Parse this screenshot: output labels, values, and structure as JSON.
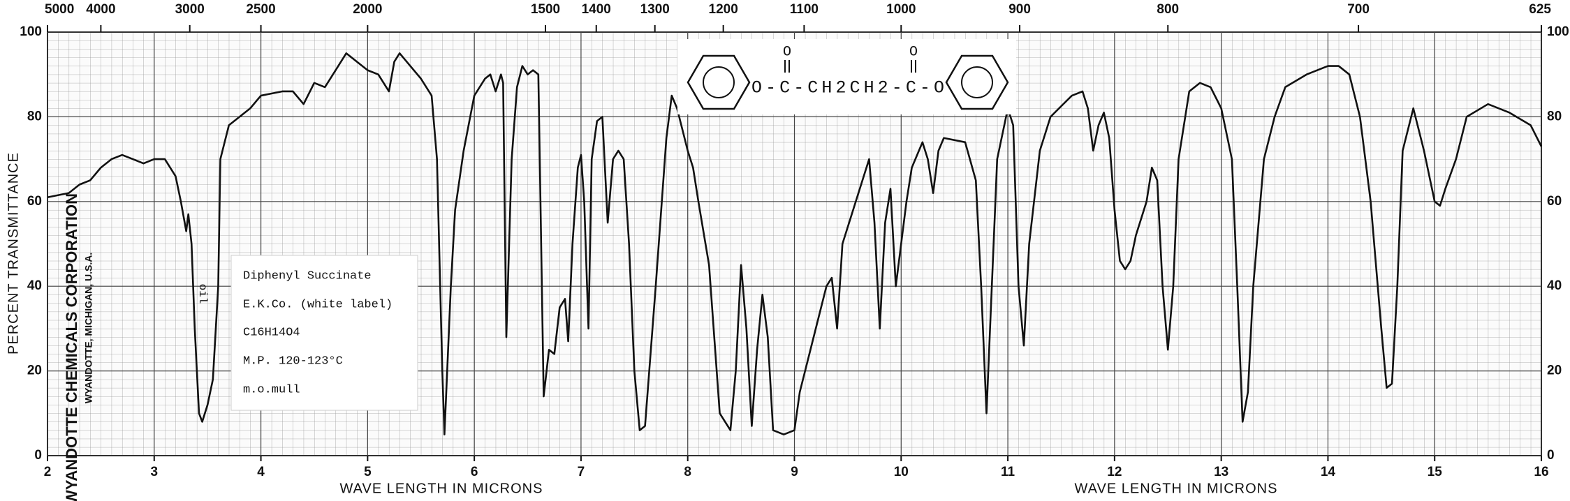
{
  "chart_data": {
    "type": "line",
    "xlabel": "WAVE LENGTH IN MICRONS",
    "ylabel": "PERCENT TRANSMITTANCE",
    "xlim": [
      2,
      16
    ],
    "xticks": [
      2,
      3,
      4,
      5,
      6,
      7,
      8,
      9,
      10,
      11,
      12,
      13,
      14,
      15,
      16
    ],
    "x2ticks": [
      5000,
      4000,
      3000,
      2500,
      2000,
      1500,
      1400,
      1300,
      1200,
      1100,
      1000,
      900,
      800,
      700,
      625
    ],
    "ylim": [
      0,
      100
    ],
    "yticks": [
      0,
      20,
      40,
      60,
      80,
      100
    ],
    "grid": true,
    "color": "#111111",
    "x": [
      2.0,
      2.2,
      2.3,
      2.4,
      2.5,
      2.6,
      2.7,
      2.8,
      2.9,
      3.0,
      3.1,
      3.2,
      3.25,
      3.3,
      3.32,
      3.35,
      3.38,
      3.42,
      3.45,
      3.5,
      3.55,
      3.6,
      3.62,
      3.7,
      3.8,
      3.9,
      4.0,
      4.2,
      4.3,
      4.4,
      4.5,
      4.6,
      4.7,
      4.8,
      4.9,
      5.0,
      5.1,
      5.2,
      5.25,
      5.3,
      5.4,
      5.5,
      5.6,
      5.65,
      5.7,
      5.72,
      5.78,
      5.82,
      5.9,
      6.0,
      6.1,
      6.15,
      6.2,
      6.25,
      6.27,
      6.3,
      6.35,
      6.4,
      6.45,
      6.5,
      6.55,
      6.6,
      6.62,
      6.65,
      6.7,
      6.75,
      6.8,
      6.85,
      6.88,
      6.92,
      6.97,
      7.0,
      7.03,
      7.07,
      7.1,
      7.15,
      7.2,
      7.25,
      7.3,
      7.35,
      7.4,
      7.45,
      7.5,
      7.55,
      7.6,
      7.7,
      7.8,
      7.85,
      7.9,
      8.0,
      8.05,
      8.1,
      8.2,
      8.3,
      8.4,
      8.45,
      8.5,
      8.55,
      8.6,
      8.65,
      8.7,
      8.75,
      8.8,
      8.9,
      9.0,
      9.05,
      9.15,
      9.3,
      9.35,
      9.4,
      9.45,
      9.6,
      9.7,
      9.75,
      9.8,
      9.85,
      9.9,
      9.95,
      10.0,
      10.05,
      10.1,
      10.2,
      10.25,
      10.3,
      10.35,
      10.4,
      10.6,
      10.7,
      10.75,
      10.8,
      10.85,
      10.9,
      11.0,
      11.05,
      11.1,
      11.15,
      11.2,
      11.3,
      11.4,
      11.6,
      11.7,
      11.75,
      11.8,
      11.85,
      11.9,
      11.95,
      12.0,
      12.05,
      12.1,
      12.15,
      12.2,
      12.3,
      12.35,
      12.4,
      12.45,
      12.5,
      12.55,
      12.6,
      12.7,
      12.8,
      12.9,
      13.0,
      13.1,
      13.15,
      13.2,
      13.25,
      13.3,
      13.4,
      13.5,
      13.6,
      13.8,
      14.0,
      14.1,
      14.2,
      14.3,
      14.4,
      14.5,
      14.55,
      14.6,
      14.65,
      14.7,
      14.8,
      14.9,
      15.0,
      15.05,
      15.1,
      15.2,
      15.3,
      15.5,
      15.7,
      15.9,
      16.0
    ],
    "values": [
      61,
      62,
      64,
      65,
      68,
      70,
      71,
      70,
      69,
      70,
      70,
      66,
      60,
      53,
      57,
      50,
      30,
      10,
      8,
      12,
      18,
      40,
      70,
      78,
      80,
      82,
      85,
      86,
      86,
      83,
      88,
      87,
      91,
      95,
      93,
      91,
      90,
      86,
      93,
      95,
      92,
      89,
      85,
      70,
      20,
      5,
      40,
      58,
      72,
      85,
      89,
      90,
      86,
      90,
      88,
      28,
      70,
      87,
      92,
      90,
      91,
      90,
      60,
      14,
      25,
      24,
      35,
      37,
      27,
      50,
      68,
      71,
      60,
      30,
      70,
      79,
      80,
      55,
      70,
      72,
      70,
      50,
      20,
      6,
      7,
      40,
      75,
      85,
      82,
      72,
      68,
      60,
      45,
      10,
      6,
      20,
      45,
      30,
      7,
      25,
      38,
      28,
      6,
      5,
      6,
      15,
      25,
      40,
      42,
      30,
      50,
      62,
      70,
      55,
      30,
      55,
      63,
      40,
      50,
      60,
      68,
      74,
      70,
      62,
      72,
      75,
      74,
      65,
      40,
      10,
      40,
      70,
      82,
      78,
      40,
      26,
      50,
      72,
      80,
      85,
      86,
      82,
      72,
      78,
      81,
      75,
      58,
      46,
      44,
      46,
      52,
      60,
      68,
      65,
      40,
      25,
      40,
      70,
      86,
      88,
      87,
      82,
      70,
      40,
      8,
      15,
      40,
      70,
      80,
      87,
      90,
      92,
      92,
      90,
      80,
      60,
      30,
      16,
      17,
      40,
      72,
      82,
      72,
      60,
      59,
      63,
      70,
      80,
      83,
      81,
      78,
      73
    ],
    "company": [
      "WYANDOTTE CHEMICALS CORPORATION",
      "WYANDOTTE, MICHIGAN, U.S.A."
    ],
    "annotation": "oil",
    "sample_label": [
      "Diphenyl Succinate",
      "E.K.Co. (white label)",
      "C16H14O4",
      "M.P. 120-123°C",
      "m.o.mull"
    ],
    "structure": {
      "chain": "O-C-CH2CH2-C-O",
      "carbonyl_oxygens": [
        "O",
        "O"
      ]
    }
  }
}
